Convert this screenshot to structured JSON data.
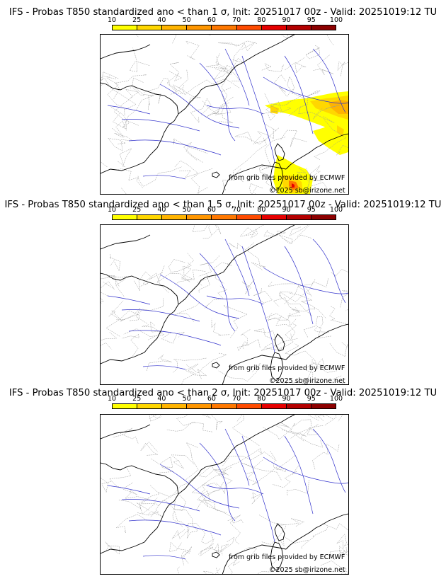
{
  "panels": [
    {
      "title": "IFS - Probas T850  standardized ano < than 1 σ, Init: 20251017 00z - Valid: 20251019:12 TU",
      "has_anomaly": true
    },
    {
      "title": "IFS - Probas T850  standardized ano < than 1.5 σ, Init: 20251017 00z - Valid: 20251019:12 TU",
      "has_anomaly": false
    },
    {
      "title": "IFS - Probas T850  standardized ano < than 2 σ, Init: 20251017 00z - Valid: 20251019:12 TU",
      "has_anomaly": false
    }
  ],
  "colorbar": {
    "ticks": [
      "10",
      "25",
      "40",
      "50",
      "60",
      "70",
      "80",
      "90",
      "95",
      "100"
    ],
    "colors": [
      "#ffff00",
      "#ffd700",
      "#ffb400",
      "#ff9600",
      "#ff7800",
      "#ff4b00",
      "#e60000",
      "#b40000",
      "#8c0000"
    ]
  },
  "credits": {
    "source": "from grib files provided by ECMWF",
    "copyright": "©2025 sb@irizone.net"
  },
  "map_colors": {
    "coast": "#000000",
    "rivers": "#3333cc",
    "borders": "#999999"
  }
}
